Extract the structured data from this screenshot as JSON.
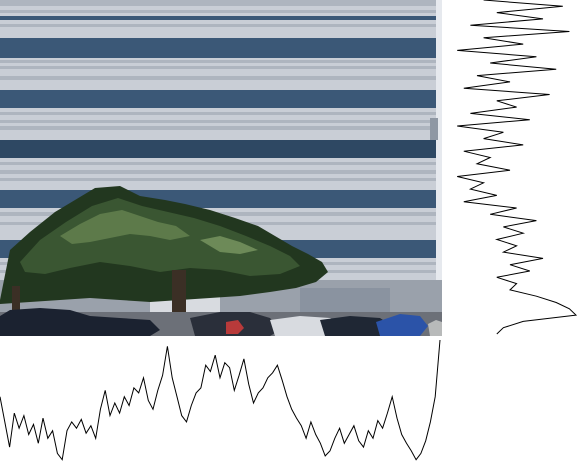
{
  "image": {
    "description_tags": [
      "posterized-photo",
      "office-building",
      "pine-tree",
      "parked-cars"
    ],
    "colors": {
      "facade_light": "#c9ced6",
      "facade_light_alt": "#aeb5bf",
      "window_band": "#3b5877",
      "window_band_dark": "#2e4863",
      "tree_dark": "#22371f",
      "tree_mid": "#3a5632",
      "tree_light": "#5d7a4a",
      "car_dark": "#1b2230",
      "car_red": "#b83a3a",
      "car_blue": "#2b53a8",
      "ground": "#6c7078",
      "profile_line": "#000000"
    }
  },
  "column_profile": {
    "values": [
      0.55,
      0.35,
      0.15,
      0.42,
      0.3,
      0.4,
      0.25,
      0.33,
      0.18,
      0.38,
      0.22,
      0.28,
      0.1,
      0.05,
      0.28,
      0.35,
      0.3,
      0.37,
      0.26,
      0.32,
      0.22,
      0.45,
      0.6,
      0.4,
      0.5,
      0.42,
      0.55,
      0.48,
      0.62,
      0.58,
      0.7,
      0.52,
      0.45,
      0.6,
      0.72,
      0.95,
      0.7,
      0.55,
      0.4,
      0.35,
      0.48,
      0.58,
      0.62,
      0.8,
      0.75,
      0.88,
      0.7,
      0.82,
      0.78,
      0.6,
      0.72,
      0.85,
      0.65,
      0.5,
      0.58,
      0.62,
      0.7,
      0.74,
      0.8,
      0.68,
      0.55,
      0.45,
      0.38,
      0.32,
      0.22,
      0.35,
      0.25,
      0.18,
      0.08,
      0.12,
      0.22,
      0.3,
      0.18,
      0.25,
      0.32,
      0.2,
      0.15,
      0.28,
      0.22,
      0.36,
      0.3,
      0.42,
      0.55,
      0.38,
      0.25,
      0.18,
      0.12,
      0.05,
      0.1,
      0.2,
      0.35,
      0.55,
      1.0
    ]
  },
  "row_profile": {
    "values": [
      0.3,
      0.9,
      0.4,
      0.75,
      0.2,
      0.95,
      0.3,
      0.6,
      0.1,
      0.7,
      0.35,
      0.85,
      0.25,
      0.5,
      0.15,
      0.8,
      0.4,
      0.55,
      0.2,
      0.65,
      0.1,
      0.45,
      0.3,
      0.6,
      0.15,
      0.35,
      0.25,
      0.5,
      0.1,
      0.3,
      0.2,
      0.4,
      0.15,
      0.55,
      0.35,
      0.7,
      0.45,
      0.6,
      0.4,
      0.55,
      0.45,
      0.75,
      0.5,
      0.65,
      0.4,
      0.55,
      0.5,
      0.7,
      0.85,
      0.95,
      1.0,
      0.6,
      0.45,
      0.4
    ]
  }
}
